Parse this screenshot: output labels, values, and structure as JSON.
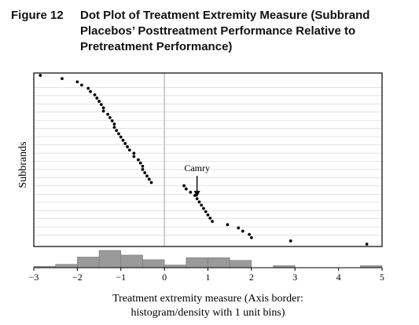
{
  "figure": {
    "number": "Figure 12",
    "title": "Dot Plot of Treatment Extremity Measure (Subbrand Placebos’ Posttreatment Performance Relative to Pretreatment Performance)"
  },
  "chart_data": {
    "type": "scatter",
    "xlabel": "Treatment extremity measure (Axis border: histogram/density with 1 unit bins)",
    "ylabel": "Subbrands",
    "xlim": [
      -3,
      5
    ],
    "x_ticks": [
      "−3",
      "−2",
      "−1",
      "0",
      "1",
      "2",
      "3",
      "4",
      "5"
    ],
    "reference_line_x": 0,
    "points": [
      -2.85,
      -2.35,
      -2.0,
      -1.9,
      -1.75,
      -1.7,
      -1.6,
      -1.55,
      -1.5,
      -1.45,
      -1.4,
      -1.4,
      -1.3,
      -1.25,
      -1.2,
      -1.15,
      -1.15,
      -1.1,
      -1.05,
      -1.0,
      -0.95,
      -0.9,
      -0.85,
      -0.8,
      -0.7,
      -0.7,
      -0.6,
      -0.55,
      -0.5,
      -0.5,
      -0.45,
      -0.4,
      -0.35,
      -0.3,
      0.45,
      0.5,
      0.6,
      0.7,
      0.75,
      0.8,
      0.85,
      0.9,
      0.95,
      1.0,
      1.05,
      1.1,
      1.45,
      1.7,
      1.8,
      1.95,
      2.0,
      2.9,
      4.65
    ],
    "annotation": {
      "text": "Camry",
      "x": 0.75
    },
    "histogram": {
      "bin_edges": [
        -3,
        -2.5,
        -2,
        -1.5,
        -1,
        -0.5,
        0,
        0.5,
        1,
        1.5,
        2,
        2.5,
        3,
        3.5,
        4,
        4.5,
        5
      ],
      "density": [
        0.02,
        0.05,
        0.16,
        0.26,
        0.19,
        0.12,
        0.04,
        0.15,
        0.15,
        0.11,
        0.0,
        0.03,
        0.0,
        0.0,
        0.0,
        0.03
      ]
    },
    "grid": "horizontal"
  },
  "colors": {
    "points": "#000000",
    "histogram_fill": "#9a9a9a",
    "reference_line": "#b0b0b0",
    "gridlines": "#d2d2d2"
  }
}
